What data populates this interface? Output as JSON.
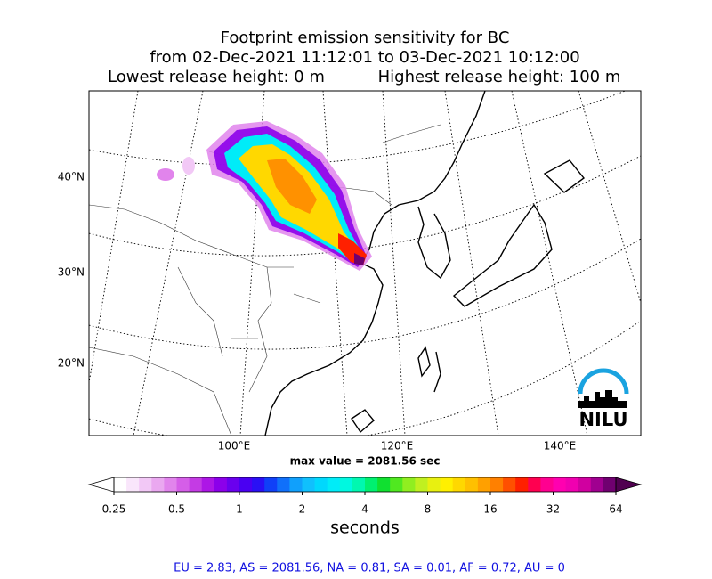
{
  "header": {
    "title": "Footprint emission sensitivity for BC",
    "period": "from 02-Dec-2021 11:12:01 to 03-Dec-2021 10:12:00",
    "lowest_release": "Lowest release height: 0 m",
    "highest_release": "Highest release height: 100 m"
  },
  "map": {
    "lat_labels": [
      "40°N",
      "30°N",
      "20°N"
    ],
    "lon_labels": [
      "100°E",
      "120°E",
      "140°E"
    ],
    "logo": "NILU",
    "max_value_label": "max value = 2081.56 sec"
  },
  "colorbar": {
    "scale": "log",
    "ticks": [
      0.25,
      0.5,
      1,
      2,
      4,
      8,
      16,
      32,
      64
    ],
    "label": "seconds",
    "colors": [
      "#ffffff",
      "#f9e6fb",
      "#f2c8f6",
      "#eaa8f0",
      "#e184ec",
      "#d55ee8",
      "#c43be4",
      "#ad16e6",
      "#8c00ea",
      "#6a00ee",
      "#4a00f2",
      "#2a10f5",
      "#1040f8",
      "#1070fa",
      "#10a0fc",
      "#10c0fd",
      "#00d8fd",
      "#00ecf8",
      "#00f8e0",
      "#00f8b0",
      "#00f070",
      "#10e030",
      "#50e820",
      "#90ee20",
      "#c0f020",
      "#e8f010",
      "#fff000",
      "#ffd800",
      "#ffc000",
      "#ffa000",
      "#ff8000",
      "#ff5000",
      "#ff2000",
      "#ff0050",
      "#ff0090",
      "#ff00b0",
      "#f000b0",
      "#d000a0",
      "#a00090",
      "#700070"
    ],
    "extend_colors": [
      "#ffffff",
      "#500050"
    ]
  },
  "footer": "EU = 2.83,  AS = 2081.56,  NA = 0.81,  SA = 0.01,  AF = 0.72,  AU = 0"
}
